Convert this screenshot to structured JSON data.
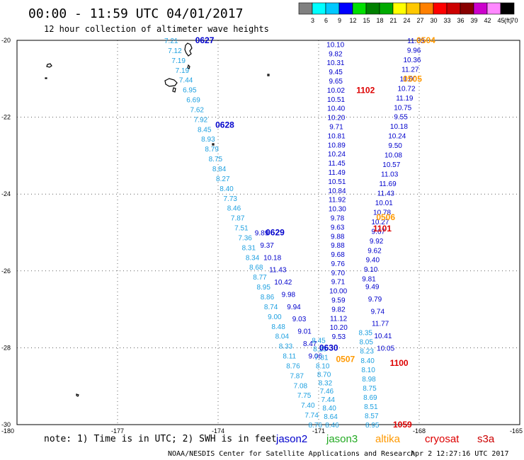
{
  "header": {
    "time_title": "00:00 - 11:59 UTC 04/01/2017",
    "subtitle": "12 hour collection of altimeter wave heights"
  },
  "colorbar": {
    "unit": "(ft)",
    "ticks": [
      "3",
      "6",
      "9",
      "12",
      "15",
      "18",
      "21",
      "24",
      "27",
      "30",
      "33",
      "36",
      "39",
      "42",
      "45",
      "70"
    ],
    "colors": [
      "#808080",
      "#00ffff",
      "#00c8ff",
      "#0000ff",
      "#00e000",
      "#008000",
      "#00aa00",
      "#ffff00",
      "#ffc800",
      "#ff8000",
      "#ff0000",
      "#cc0000",
      "#880000",
      "#cc00cc",
      "#ff88ff",
      "#000000"
    ]
  },
  "axes": {
    "x_ticks": [
      "-180",
      "-177",
      "-174",
      "-171",
      "-168",
      "-165"
    ],
    "y_ticks": [
      "-20",
      "-22",
      "-24",
      "-26",
      "-28",
      "-30"
    ]
  },
  "colors": {
    "jason2": "#0000cc",
    "jason2_light": "#1ea0e0",
    "jason3": "#22aa22",
    "altika": "#ff9900",
    "cryosat": "#dd0000",
    "s3a": "#cc0000"
  },
  "track_labels": [
    {
      "text": "0627",
      "lon": -174.4,
      "lat": -20.0,
      "sat": "jason2"
    },
    {
      "text": "0628",
      "lon": -173.8,
      "lat": -22.2,
      "sat": "jason2"
    },
    {
      "text": "0629",
      "lon": -172.3,
      "lat": -25.0,
      "sat": "jason2"
    },
    {
      "text": "0630",
      "lon": -170.7,
      "lat": -28.0,
      "sat": "jason2"
    },
    {
      "text": "0504",
      "lon": -167.8,
      "lat": -20.0,
      "sat": "altika"
    },
    {
      "text": "0505",
      "lon": -168.2,
      "lat": -21.0,
      "sat": "altika"
    },
    {
      "text": "0506",
      "lon": -169.0,
      "lat": -24.6,
      "sat": "altika"
    },
    {
      "text": "0507",
      "lon": -170.2,
      "lat": -28.3,
      "sat": "altika"
    },
    {
      "text": "1102",
      "lon": -169.6,
      "lat": -21.3,
      "sat": "cryosat"
    },
    {
      "text": "1101",
      "lon": -169.1,
      "lat": -24.9,
      "sat": "cryosat"
    },
    {
      "text": "1100",
      "lon": -168.6,
      "lat": -28.4,
      "sat": "cryosat"
    },
    {
      "text": "1059",
      "lon": -168.5,
      "lat": -30.0,
      "sat": "cryosat"
    }
  ],
  "tracks": [
    {
      "sat": "jason2_light",
      "lon_start": -175.4,
      "lat_start": -20.0,
      "lon_end": -171.1,
      "lat_end": -30.0,
      "values": [
        "7.21",
        "7.12",
        "7.19",
        "7.19",
        "7.44",
        "6.95",
        "6.69",
        "7.62",
        "7.92",
        "8.45",
        "8.93",
        "8.79",
        "8.75",
        "8.84",
        "8.27",
        "8.40",
        "7.73",
        "8.46",
        "7.87",
        "7.51",
        "7.36",
        "8.31",
        "8.34",
        "8.68",
        "8.77",
        "8.95",
        "8.86",
        "8.74",
        "9.00",
        "8.48",
        "8.04",
        "8.33",
        "8.11",
        "8.76",
        "7.87",
        "7.08",
        "7.75",
        "7.40",
        "7.74",
        "8.76"
      ]
    },
    {
      "sat": "jason2",
      "lon_start": -172.7,
      "lat_start": -25.0,
      "lon_end": -171.1,
      "lat_end": -28.2,
      "values": [
        "9.89",
        "9.37",
        "10.18",
        "11.43",
        "10.42",
        "9.98",
        "9.94",
        "9.03",
        "9.01",
        "8.47",
        "9.06"
      ]
    },
    {
      "sat": "jason2_light",
      "lon_start": -171.0,
      "lat_start": -27.8,
      "lon_end": -170.6,
      "lat_end": -30.0,
      "values": [
        "8.45",
        "8.23",
        "7.81",
        "8.10",
        "8.70",
        "8.32",
        "7.46",
        "7.44",
        "8.40",
        "8.64",
        "8.46"
      ]
    },
    {
      "sat": "jason2",
      "lon_start": -170.5,
      "lat_start": -20.1,
      "lon_end": -170.4,
      "lat_end": -27.7,
      "values": [
        "10.10",
        "9.82",
        "10.31",
        "9.45",
        "9.65",
        "10.02",
        "10.51",
        "10.40",
        "10.20",
        "9.71",
        "10.81",
        "10.89",
        "10.24",
        "11.45",
        "11.49",
        "10.51",
        "10.84",
        "11.92",
        "10.30",
        "9.78",
        "9.63",
        "9.88",
        "9.88",
        "9.68",
        "9.76",
        "9.70",
        "9.71",
        "10.00",
        "9.59",
        "9.82",
        "11.12",
        "10.20",
        "9.53"
      ]
    },
    {
      "sat": "jason2",
      "lon_start": -168.1,
      "lat_start": -20.0,
      "lon_end": -169.5,
      "lat_end": -26.2,
      "values": [
        "11.03",
        "9.96",
        "10.36",
        "11.27",
        "11.00",
        "10.72",
        "11.19",
        "10.75",
        "9.55",
        "10.18",
        "10.24",
        "9.50",
        "10.08",
        "10.57",
        "11.03",
        "11.69",
        "11.43",
        "10.01",
        "10.78",
        "10.27",
        "9.67",
        "9.92",
        "9.62",
        "9.40",
        "9.10",
        "9.81"
      ]
    },
    {
      "sat": "jason2",
      "lon_start": -169.4,
      "lat_start": -26.4,
      "lon_end": -169.0,
      "lat_end": -28.0,
      "values": [
        "9.49",
        "9.79",
        "9.74",
        "11.77",
        "10.41",
        "10.05"
      ]
    },
    {
      "sat": "jason2_light",
      "lon_start": -169.6,
      "lat_start": -27.6,
      "lon_end": -169.4,
      "lat_end": -30.0,
      "values": [
        "8.35",
        "8.05",
        "8.23",
        "8.40",
        "8.10",
        "8.98",
        "8.75",
        "8.69",
        "8.51",
        "8.57",
        "8.95"
      ]
    }
  ],
  "legend": {
    "note": "note: 1) Time is in UTC; 2) SWH is in feet",
    "items": [
      {
        "label": "jason2",
        "sat": "jason2"
      },
      {
        "label": "jason3",
        "sat": "jason3"
      },
      {
        "label": "altika",
        "sat": "altika"
      },
      {
        "label": "cryosat",
        "sat": "cryosat"
      },
      {
        "label": "s3a",
        "sat": "s3a"
      }
    ]
  },
  "footer": {
    "credit": "NOAA/NESDIS Center for Satellite Applications and Research",
    "timestamp": "Apr  2 12:27:16 UTC 2017"
  }
}
